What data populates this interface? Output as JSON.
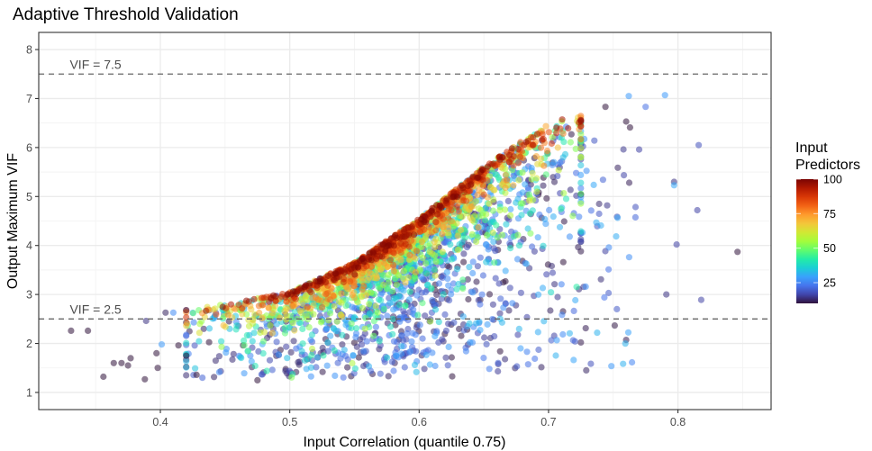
{
  "chart_data": {
    "type": "scatter",
    "title": "Adaptive Threshold Validation",
    "xlabel": "Input Correlation (quantile 0.75)",
    "ylabel": "Output Maximum VIF",
    "xlim": [
      0.306,
      0.872
    ],
    "ylim": [
      0.65,
      8.35
    ],
    "x_ticks": [
      0.4,
      0.5,
      0.6,
      0.7,
      0.8
    ],
    "x_tick_labels": [
      "0.4",
      "0.5",
      "0.6",
      "0.7",
      "0.8"
    ],
    "y_ticks": [
      1,
      2,
      3,
      4,
      5,
      6,
      7,
      8
    ],
    "y_tick_labels": [
      "1",
      "2",
      "3",
      "4",
      "5",
      "6",
      "7",
      "8"
    ],
    "grid": true,
    "hlines": [
      {
        "y": 7.5,
        "label": "VIF = 7.5",
        "label_x": 0.33,
        "style": "dashed"
      },
      {
        "y": 2.5,
        "label": "VIF = 2.5",
        "label_x": 0.33,
        "style": "dashed"
      }
    ],
    "color_scale": {
      "title_lines": [
        "Input",
        "Predictors"
      ],
      "min": 10,
      "max": 100,
      "ticks": [
        25,
        50,
        75,
        100
      ],
      "tick_labels": [
        "25",
        "50",
        "75",
        "100"
      ],
      "palette": [
        "#30123b",
        "#4145ab",
        "#4675ed",
        "#39a2fc",
        "#1bcfd4",
        "#24eca6",
        "#61fc6c",
        "#a4fc3b",
        "#d1e834",
        "#f3c63a",
        "#fe9b2d",
        "#f36315",
        "#d93806",
        "#b11901",
        "#7a0403"
      ],
      "legend_position": "right"
    },
    "envelope": {
      "description_x": [
        0.42,
        0.45,
        0.5,
        0.55,
        0.6,
        0.65,
        0.7,
        0.72
      ],
      "upper_y": [
        2.68,
        2.8,
        3.05,
        3.65,
        4.55,
        5.6,
        6.5,
        6.65
      ]
    },
    "n_cloud_points": 2600,
    "points": [
      {
        "x": 0.331,
        "y": 2.26,
        "c": 10
      },
      {
        "x": 0.344,
        "y": 2.26,
        "c": 10
      },
      {
        "x": 0.356,
        "y": 1.32,
        "c": 10
      },
      {
        "x": 0.364,
        "y": 1.6,
        "c": 10
      },
      {
        "x": 0.37,
        "y": 1.6,
        "c": 10
      },
      {
        "x": 0.375,
        "y": 1.55,
        "c": 10
      },
      {
        "x": 0.377,
        "y": 1.7,
        "c": 10
      },
      {
        "x": 0.388,
        "y": 1.27,
        "c": 10
      },
      {
        "x": 0.389,
        "y": 2.46,
        "c": 14
      },
      {
        "x": 0.397,
        "y": 1.8,
        "c": 10
      },
      {
        "x": 0.398,
        "y": 1.5,
        "c": 10
      },
      {
        "x": 0.401,
        "y": 1.98,
        "c": 28
      },
      {
        "x": 0.404,
        "y": 2.63,
        "c": 12
      },
      {
        "x": 0.41,
        "y": 2.63,
        "c": 26
      },
      {
        "x": 0.414,
        "y": 1.96,
        "c": 10
      },
      {
        "x": 0.42,
        "y": 1.75,
        "c": 10
      },
      {
        "x": 0.428,
        "y": 1.36,
        "c": 10
      },
      {
        "x": 0.475,
        "y": 1.25,
        "c": 10
      },
      {
        "x": 0.762,
        "y": 7.05,
        "c": 28
      },
      {
        "x": 0.79,
        "y": 7.07,
        "c": 28
      },
      {
        "x": 0.775,
        "y": 6.83,
        "c": 22
      },
      {
        "x": 0.816,
        "y": 6.05,
        "c": 18
      },
      {
        "x": 0.797,
        "y": 5.3,
        "c": 14
      },
      {
        "x": 0.797,
        "y": 5.23,
        "c": 30
      },
      {
        "x": 0.815,
        "y": 4.72,
        "c": 16
      },
      {
        "x": 0.799,
        "y": 4.02,
        "c": 16
      },
      {
        "x": 0.846,
        "y": 3.87,
        "c": 10
      },
      {
        "x": 0.791,
        "y": 3.0,
        "c": 14
      },
      {
        "x": 0.818,
        "y": 2.89,
        "c": 16
      },
      {
        "x": 0.744,
        "y": 6.83,
        "c": 10
      },
      {
        "x": 0.76,
        "y": 6.53,
        "c": 10
      },
      {
        "x": 0.763,
        "y": 6.41,
        "c": 10
      },
      {
        "x": 0.77,
        "y": 5.96,
        "c": 16
      }
    ]
  }
}
